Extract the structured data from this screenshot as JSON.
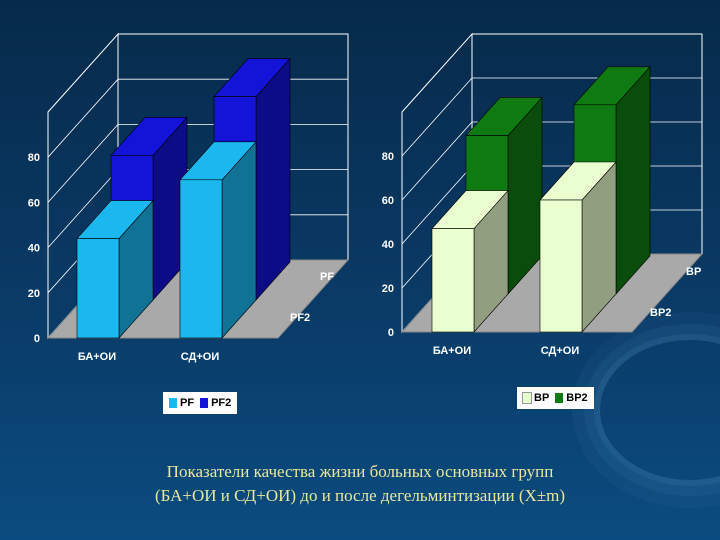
{
  "chart_data": [
    {
      "type": "bar",
      "categories": [
        "БА+ОИ",
        "СД+ОИ"
      ],
      "series": [
        {
          "name": "PF",
          "values": [
            44,
            70
          ]
        },
        {
          "name": "PF2",
          "values": [
            64,
            90
          ]
        }
      ],
      "depth_labels": [
        "PF",
        "PF2"
      ],
      "yticks": [
        "0",
        "20",
        "40",
        "60",
        "80"
      ],
      "ylim": [
        0,
        100
      ],
      "colors": {
        "front": "#1ab8ee",
        "back": "#1414d8"
      }
    },
    {
      "type": "bar",
      "categories": [
        "БА+ОИ",
        "СД+ОИ"
      ],
      "series": [
        {
          "name": "BP",
          "values": [
            47,
            60
          ]
        },
        {
          "name": "BP2",
          "values": [
            72,
            86
          ]
        }
      ],
      "depth_labels": [
        "BP",
        "BP2"
      ],
      "yticks": [
        "0",
        "20",
        "40",
        "60",
        "80"
      ],
      "ylim": [
        0,
        100
      ],
      "colors": {
        "front": "#eaffcf",
        "back": "#0f7a12"
      }
    }
  ],
  "caption": {
    "line1": "Показатели качества жизни больных основных групп",
    "line2": "(БА+ОИ и СД+ОИ) до и после дегельминтизации (X±m)"
  }
}
